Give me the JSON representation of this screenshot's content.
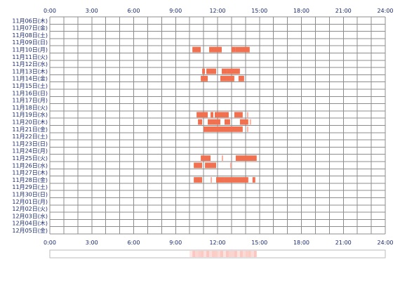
{
  "chart_data": {
    "type": "heatmap",
    "x_ticks": [
      "0:00",
      "3:00",
      "6:00",
      "9:00",
      "12:00",
      "15:00",
      "18:00",
      "21:00",
      "24:00"
    ],
    "xlim": [
      0,
      24
    ],
    "grid": true,
    "colors": {
      "grid": "#8c8c8c",
      "bar_dark": "#f07050",
      "bar_light": "#f8b0a0",
      "tick_text": "#1a2a6c",
      "summary_border": "#bbbbbb",
      "summary_fill": "#f9b8b0"
    },
    "rows": [
      {
        "label": "11月06日(木)",
        "segments": []
      },
      {
        "label": "11月07日(金)",
        "segments": []
      },
      {
        "label": "11月08日(土)",
        "segments": []
      },
      {
        "label": "11月09日(日)",
        "segments": []
      },
      {
        "label": "11月10日(月)",
        "segments": [
          [
            10.2,
            10.8
          ],
          [
            11.4,
            12.3
          ],
          [
            13.0,
            13.3
          ],
          [
            13.3,
            14.3
          ]
        ]
      },
      {
        "label": "11月11日(火)",
        "segments": []
      },
      {
        "label": "11月12日(水)",
        "segments": []
      },
      {
        "label": "11月13日(木)",
        "segments": [
          [
            10.9,
            11.1
          ],
          [
            11.2,
            11.9
          ],
          [
            12.3,
            12.7
          ],
          [
            12.7,
            13.6
          ]
        ]
      },
      {
        "label": "11月14日(金)",
        "segments": [
          [
            10.8,
            11.3
          ],
          [
            12.2,
            13.2
          ],
          [
            13.5,
            13.9
          ]
        ]
      },
      {
        "label": "11月15日(土)",
        "segments": []
      },
      {
        "label": "11月16日(日)",
        "segments": []
      },
      {
        "label": "11月17日(月)",
        "segments": []
      },
      {
        "label": "11月18日(火)",
        "segments": []
      },
      {
        "label": "11月19日(水)",
        "segments": [
          [
            10.5,
            11.3
          ],
          [
            11.5,
            11.7
          ],
          [
            11.8,
            12.8
          ],
          [
            13.2,
            13.8
          ],
          [
            14.1,
            14.2
          ]
        ]
      },
      {
        "label": "11月20日(木)",
        "segments": [
          [
            10.6,
            10.9
          ],
          [
            11.3,
            12.2
          ],
          [
            12.5,
            12.9
          ],
          [
            13.6,
            14.2
          ],
          [
            14.3,
            14.4
          ]
        ]
      },
      {
        "label": "11月21日(金)",
        "segments": [
          [
            11.0,
            13.8
          ],
          [
            14.1,
            14.2
          ]
        ]
      },
      {
        "label": "11月22日(土)",
        "segments": []
      },
      {
        "label": "11月23日(日)",
        "segments": []
      },
      {
        "label": "11月24日(月)",
        "segments": []
      },
      {
        "label": "11月25日(火)",
        "segments": [
          [
            10.8,
            11.5
          ],
          [
            12.3,
            12.4
          ],
          [
            13.3,
            14.8
          ]
        ]
      },
      {
        "label": "11月26日(水)",
        "segments": [
          [
            10.3,
            10.9
          ],
          [
            11.1,
            11.9
          ],
          [
            12.9,
            13.0
          ]
        ]
      },
      {
        "label": "11月27日(木)",
        "segments": []
      },
      {
        "label": "11月28日(金)",
        "segments": [
          [
            10.3,
            10.9
          ],
          [
            11.5,
            11.6
          ],
          [
            11.9,
            12.5
          ],
          [
            12.5,
            14.2
          ],
          [
            14.5,
            14.7
          ]
        ]
      },
      {
        "label": "11月29日(土)",
        "segments": []
      },
      {
        "label": "11月30日(日)",
        "segments": []
      },
      {
        "label": "12月01日(月)",
        "segments": []
      },
      {
        "label": "12月02日(火)",
        "segments": []
      },
      {
        "label": "12月03日(水)",
        "segments": []
      },
      {
        "label": "12月04日(木)",
        "segments": []
      },
      {
        "label": "12月05日(金)",
        "segments": []
      }
    ],
    "summary_range": [
      10.0,
      14.8
    ]
  }
}
